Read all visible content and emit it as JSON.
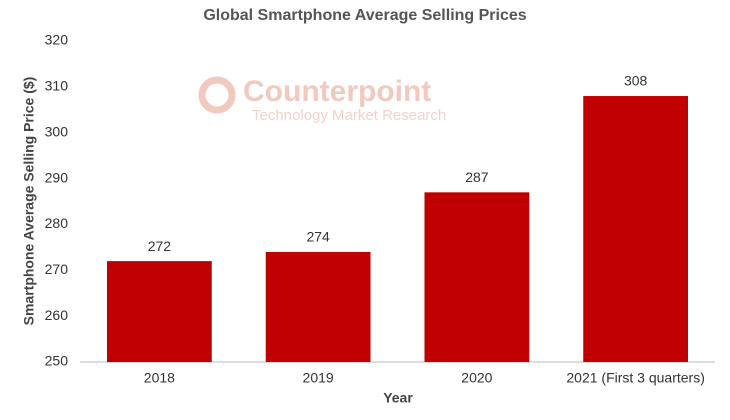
{
  "chart_data": {
    "type": "bar",
    "title": "Global Smartphone Average Selling Prices",
    "watermark": {
      "name": "Counterpoint",
      "tagline": "Technology Market Research"
    },
    "x_label": "Year",
    "y_label": "Smartphone Average Selling Price ($)",
    "categories": [
      "2018",
      "2019",
      "2020",
      "2021 (First 3 quarters)"
    ],
    "values": [
      272,
      274,
      287,
      308
    ],
    "color": "#c00000",
    "ylim": [
      250,
      320
    ],
    "yticks": [
      250,
      260,
      270,
      280,
      290,
      300,
      310,
      320
    ],
    "grid": false
  }
}
